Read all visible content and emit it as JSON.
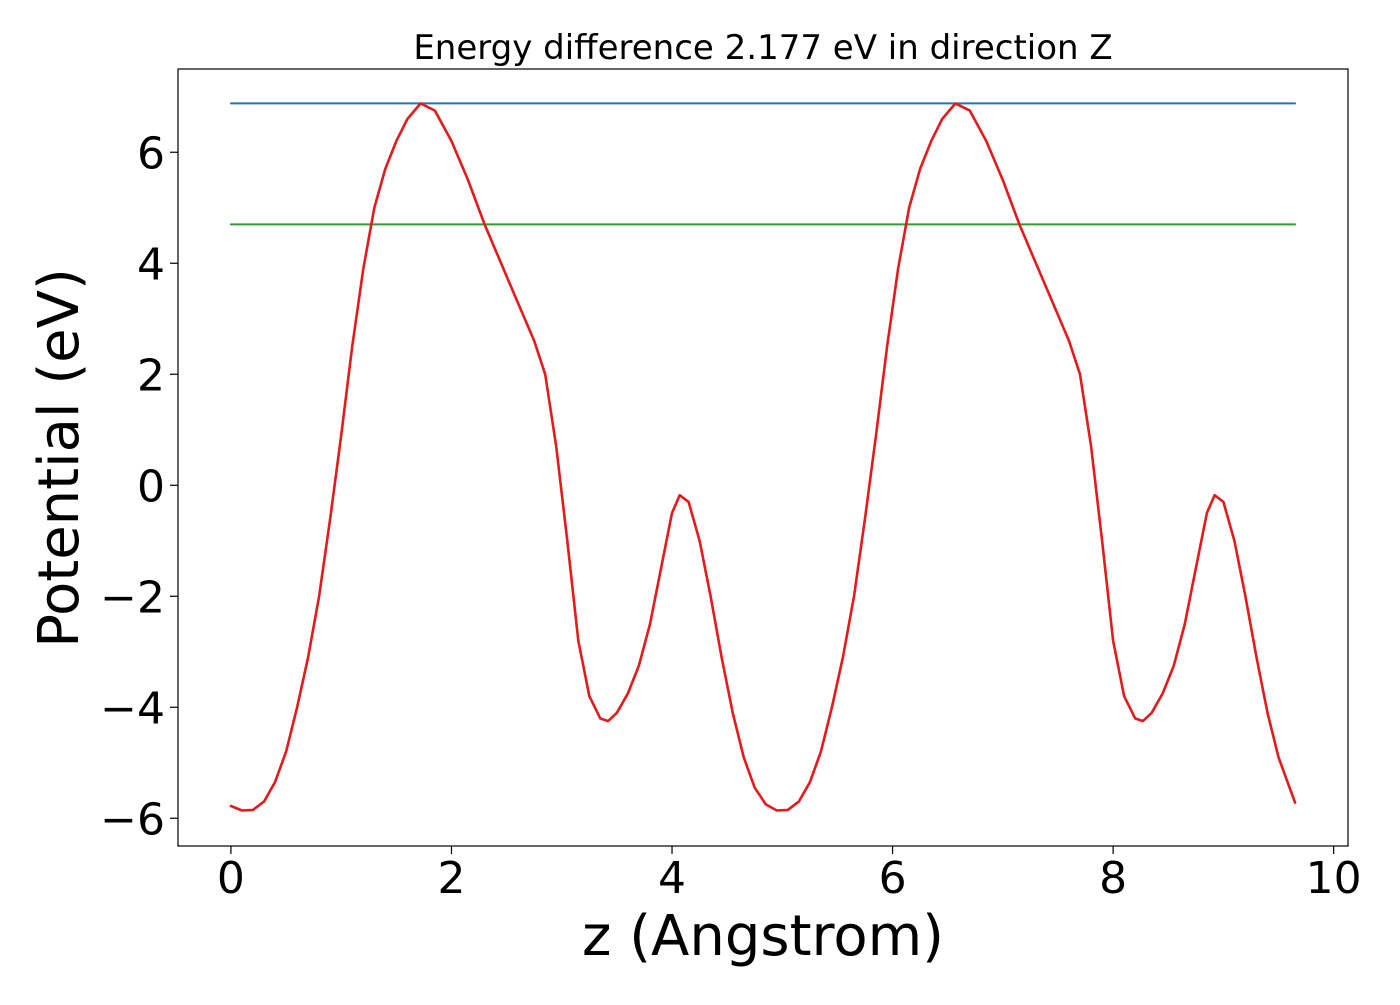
{
  "chart_data": {
    "type": "line",
    "title": "Energy difference 2.177 eV in direction Z",
    "xlabel": "z (Angstrom)",
    "ylabel": "Potential (eV)",
    "xlim": [
      -0.48,
      10.13
    ],
    "ylim": [
      -6.5,
      7.5
    ],
    "grid": false,
    "legend": "none",
    "x_ticks": [
      0,
      2,
      4,
      6,
      8,
      10
    ],
    "x_tick_labels": [
      "0",
      "2",
      "4",
      "6",
      "8",
      "10"
    ],
    "y_ticks": [
      -6,
      -4,
      -2,
      0,
      2,
      4,
      6
    ],
    "y_tick_labels": [
      "−6",
      "−4",
      "−2",
      "0",
      "2",
      "4",
      "6"
    ],
    "series": [
      {
        "color": "#1f77b4",
        "x": [
          0,
          9.65
        ],
        "y": [
          6.88,
          6.88
        ]
      },
      {
        "color": "#2ca02c",
        "x": [
          0,
          9.65
        ],
        "y": [
          4.7,
          4.7
        ]
      },
      {
        "color": "#e41a1c",
        "x": [
          0.0,
          0.1,
          0.2,
          0.3,
          0.4,
          0.5,
          0.6,
          0.7,
          0.8,
          0.9,
          1.0,
          1.1,
          1.2,
          1.3,
          1.4,
          1.5,
          1.6,
          1.72,
          1.85,
          2.0,
          2.15,
          2.3,
          2.45,
          2.6,
          2.75,
          2.85,
          2.95,
          3.05,
          3.15,
          3.25,
          3.35,
          3.42,
          3.5,
          3.6,
          3.7,
          3.8,
          3.9,
          4.0,
          4.07,
          4.15,
          4.25,
          4.35,
          4.45,
          4.55,
          4.65,
          4.75,
          4.85,
          4.95,
          5.05,
          5.15,
          5.25,
          5.35,
          5.45,
          5.55,
          5.65,
          5.75,
          5.85,
          5.95,
          6.05,
          6.15,
          6.25,
          6.35,
          6.45,
          6.57,
          6.7,
          6.85,
          7.0,
          7.15,
          7.3,
          7.45,
          7.6,
          7.7,
          7.8,
          7.9,
          8.0,
          8.1,
          8.2,
          8.27,
          8.35,
          8.45,
          8.55,
          8.65,
          8.75,
          8.85,
          8.92,
          9.0,
          9.1,
          9.2,
          9.3,
          9.4,
          9.5,
          9.6,
          9.65
        ],
        "y": [
          -5.78,
          -5.86,
          -5.85,
          -5.7,
          -5.35,
          -4.8,
          -4.0,
          -3.1,
          -2.0,
          -0.6,
          0.9,
          2.5,
          3.9,
          5.0,
          5.7,
          6.2,
          6.6,
          6.88,
          6.75,
          6.2,
          5.5,
          4.7,
          4.0,
          3.3,
          2.6,
          2.0,
          0.7,
          -1.0,
          -2.8,
          -3.8,
          -4.2,
          -4.25,
          -4.1,
          -3.75,
          -3.25,
          -2.5,
          -1.5,
          -0.5,
          -0.18,
          -0.3,
          -1.0,
          -2.0,
          -3.1,
          -4.1,
          -4.9,
          -5.45,
          -5.75,
          -5.86,
          -5.85,
          -5.7,
          -5.35,
          -4.8,
          -4.0,
          -3.1,
          -2.0,
          -0.6,
          0.9,
          2.5,
          3.9,
          5.0,
          5.7,
          6.2,
          6.6,
          6.88,
          6.75,
          6.2,
          5.5,
          4.7,
          4.0,
          3.3,
          2.6,
          2.0,
          0.7,
          -1.0,
          -2.8,
          -3.8,
          -4.2,
          -4.25,
          -4.1,
          -3.75,
          -3.25,
          -2.5,
          -1.5,
          -0.5,
          -0.18,
          -0.3,
          -1.0,
          -2.0,
          -3.1,
          -4.1,
          -4.9,
          -5.45,
          -5.72
        ]
      }
    ]
  }
}
